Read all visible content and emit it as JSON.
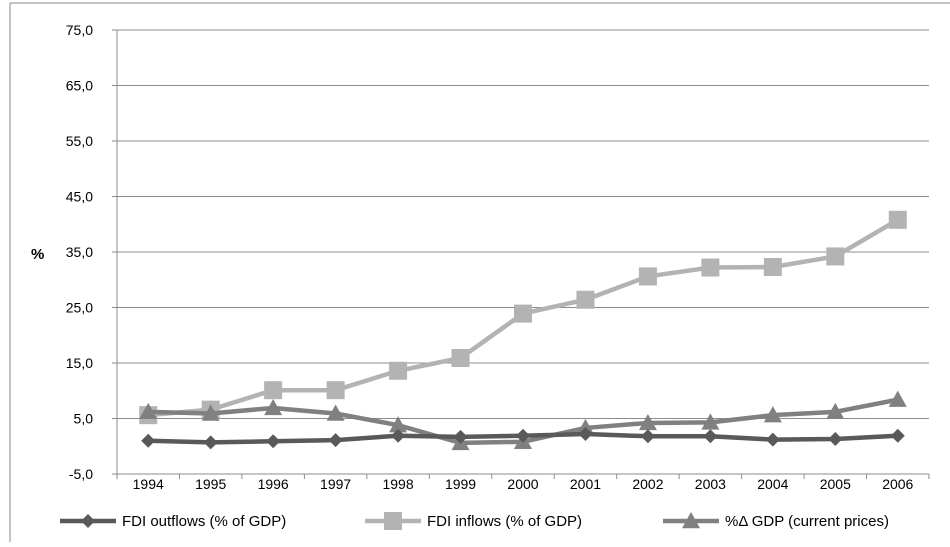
{
  "chart_data": {
    "type": "line",
    "title": "",
    "xlabel": "",
    "ylabel": "%",
    "ylim": [
      -5,
      75
    ],
    "yticks": [
      "75,0",
      "65,0",
      "55,0",
      "45,0",
      "35,0",
      "25,0",
      "15,0",
      "5,0",
      "-5,0"
    ],
    "ytick_values": [
      75,
      65,
      55,
      45,
      35,
      25,
      15,
      5,
      -5
    ],
    "categories": [
      "1994",
      "1995",
      "1996",
      "1997",
      "1998",
      "1999",
      "2000",
      "2001",
      "2002",
      "2003",
      "2004",
      "2005",
      "2006"
    ],
    "grid": true,
    "legend_position": "bottom",
    "series": [
      {
        "name": "FDI outflows (% of GDP)",
        "color": "#595959",
        "marker": "diamond",
        "values": [
          1.0,
          0.7,
          0.9,
          1.1,
          1.9,
          1.7,
          1.9,
          2.2,
          1.8,
          1.8,
          1.2,
          1.3,
          1.9
        ]
      },
      {
        "name": "FDI inflows (% of GDP)",
        "color": "#b3b3b3",
        "marker": "square",
        "values": [
          5.6,
          6.6,
          10.1,
          10.1,
          13.6,
          15.9,
          23.9,
          26.4,
          30.6,
          32.2,
          32.3,
          34.2,
          40.8
        ]
      },
      {
        "name": "%Δ GDP (current prices)",
        "color": "#808080",
        "marker": "triangle",
        "values": [
          6.2,
          5.9,
          6.9,
          5.9,
          3.8,
          0.6,
          0.8,
          3.3,
          4.2,
          4.3,
          5.6,
          6.2,
          8.4
        ]
      }
    ]
  }
}
